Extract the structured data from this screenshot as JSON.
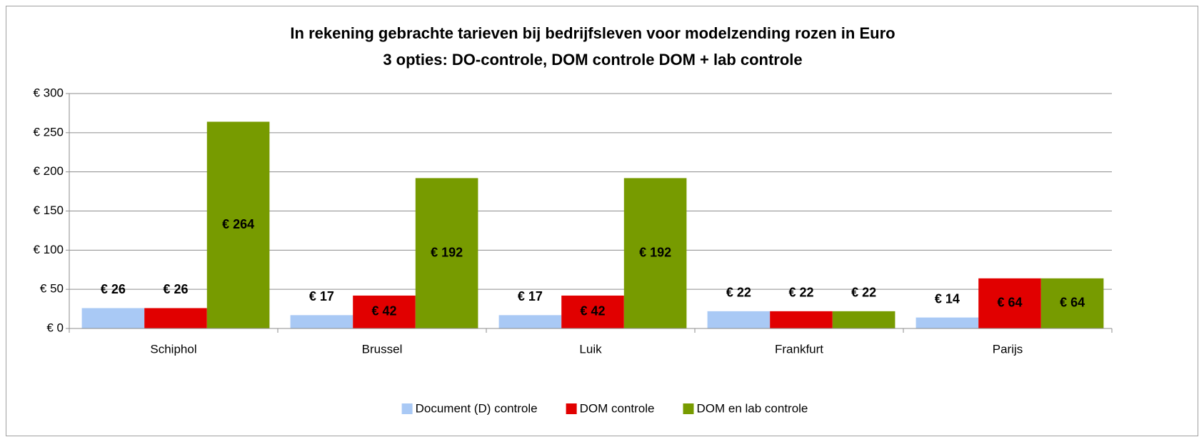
{
  "chart_data": {
    "type": "bar",
    "title": "In rekening gebrachte tarieven bij bedrijfsleven voor modelzending rozen in Euro",
    "subtitle": "3 opties: DO-controle, DOM controle DOM + lab controle",
    "categories": [
      "Schiphol",
      "Brussel",
      "Luik",
      "Frankfurt",
      "Parijs"
    ],
    "series": [
      {
        "name": "Document (D) controle",
        "color": "#a9c9f5",
        "values": [
          26,
          17,
          17,
          22,
          14
        ],
        "value_labels": [
          "€ 26",
          "€ 17",
          "€ 17",
          "€ 22",
          "€ 14"
        ]
      },
      {
        "name": "DOM controle",
        "color": "#e10000",
        "values": [
          26,
          42,
          42,
          22,
          64
        ],
        "value_labels": [
          "€ 26",
          "€ 42",
          "€ 42",
          "€ 22",
          "€ 64"
        ]
      },
      {
        "name": "DOM en lab controle",
        "color": "#779b00",
        "values": [
          264,
          192,
          192,
          22,
          64
        ],
        "value_labels": [
          "€ 264",
          "€ 192",
          "€ 192",
          "€ 22",
          "€ 64"
        ]
      }
    ],
    "ylim": [
      0,
      300
    ],
    "yticks": [
      {
        "value": 0,
        "label": "€ 0"
      },
      {
        "value": 50,
        "label": "€ 50"
      },
      {
        "value": 100,
        "label": "€ 100"
      },
      {
        "value": 150,
        "label": "€ 150"
      },
      {
        "value": 200,
        "label": "€ 200"
      },
      {
        "value": 250,
        "label": "€ 250"
      },
      {
        "value": 300,
        "label": "€ 300"
      }
    ],
    "grid": true,
    "legend": "bottom"
  }
}
